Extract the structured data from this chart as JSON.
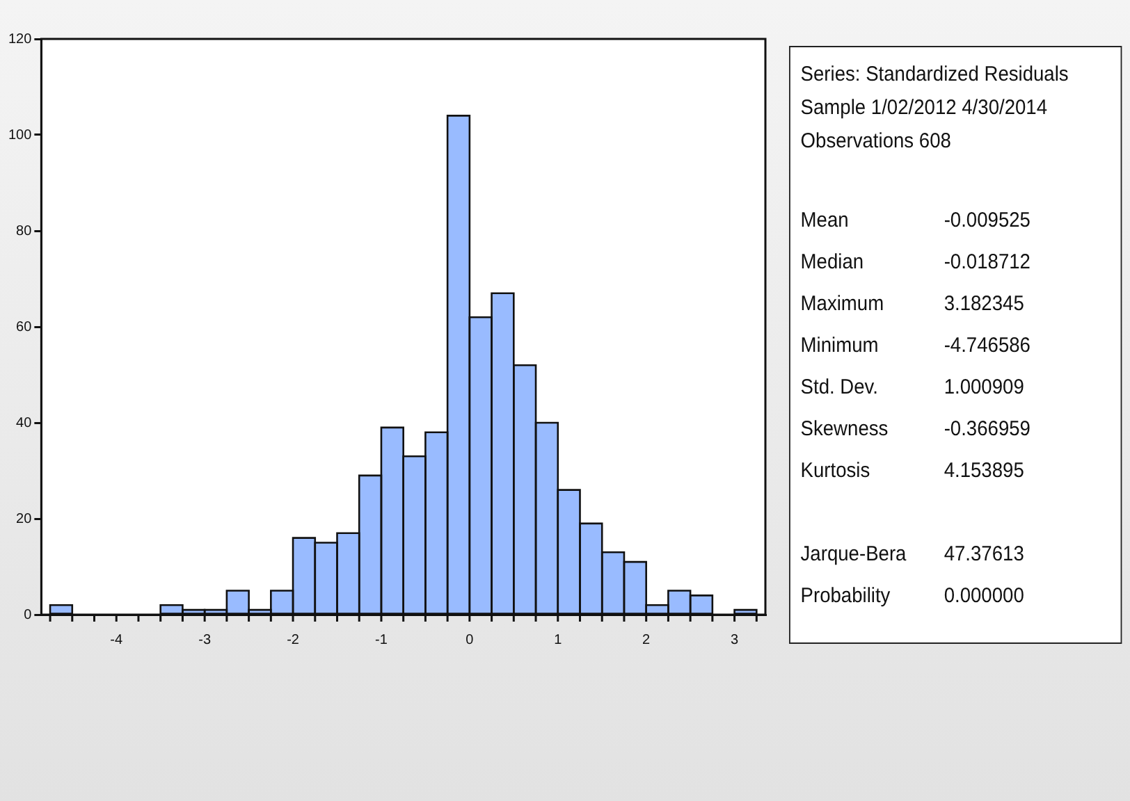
{
  "chart_data": {
    "type": "histogram",
    "bins": [
      -4.75,
      -4.5,
      -4.25,
      -4,
      -3.75,
      -3.5,
      -3.25,
      -3,
      -2.75,
      -2.5,
      -2.25,
      -2,
      -1.75,
      -1.5,
      -1.25,
      -1,
      -0.75,
      -0.5,
      -0.25,
      0,
      0.25,
      0.5,
      0.75,
      1,
      1.25,
      1.5,
      1.75,
      2,
      2.25,
      2.5,
      2.75,
      3,
      3.25
    ],
    "values": [
      2,
      0,
      0,
      0,
      0,
      2,
      1,
      1,
      5,
      1,
      5,
      16,
      15,
      17,
      29,
      39,
      33,
      38,
      104,
      62,
      67,
      52,
      40,
      26,
      19,
      13,
      11,
      2,
      5,
      4,
      0,
      1
    ],
    "color": "#99bbff",
    "xlim": [
      -4.85,
      3.35
    ],
    "xticks": [
      -4,
      -3,
      -2,
      -1,
      0,
      1,
      2,
      3
    ],
    "ylim": [
      0,
      120
    ],
    "yticks": [
      0,
      20,
      40,
      60,
      80,
      100,
      120
    ],
    "grid": false,
    "legend": false,
    "annotations": [
      "Series: Standardized Residuals",
      "Sample 1/02/2012 4/30/2014",
      "Observations 608",
      "Mean",
      "-0.009525",
      "Median",
      "-0.018712",
      "Maximum",
      "3.182345",
      "Minimum",
      "-4.746586",
      "Std. Dev.",
      "1.000909",
      "Skewness",
      "-0.366959",
      "Kurtosis",
      "4.153895",
      "Jarque-Bera",
      "47.37613",
      "Probability",
      "0.000000"
    ]
  }
}
